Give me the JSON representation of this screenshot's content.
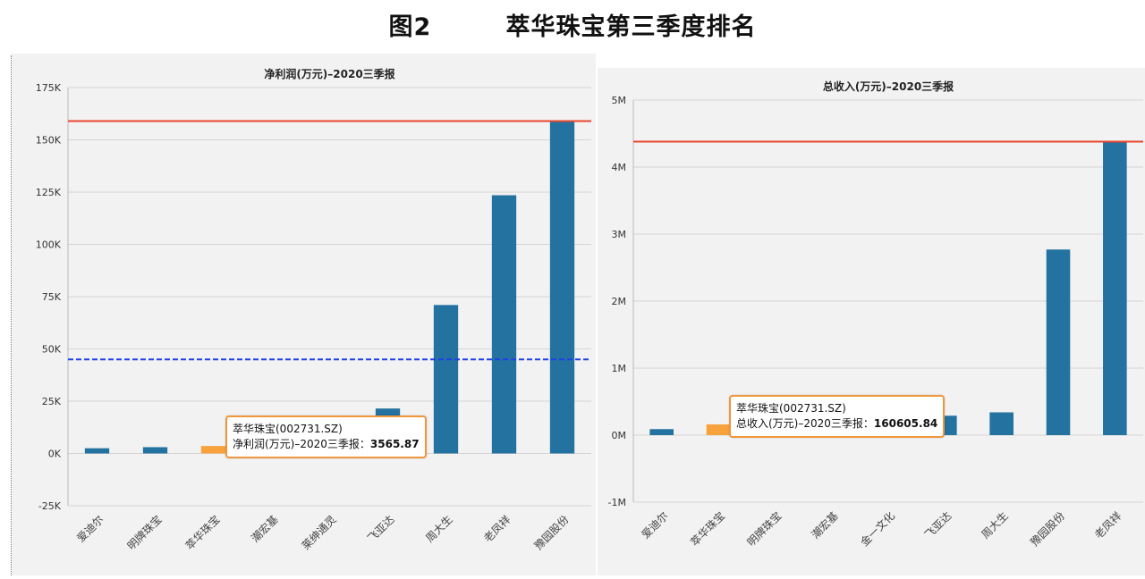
{
  "page": {
    "title": "图2        萃华珠宝第三季度排名"
  },
  "colors": {
    "bar": "#2372a0",
    "highlight": "#f7a23c",
    "max_line": "#e8462e",
    "avg_line": "#1f3fe6",
    "grid": "#d4d4d4",
    "tooltip_border": "#f0963c"
  },
  "chart_data": [
    {
      "type": "bar",
      "title": "净利润(万元)–2020三季报",
      "categories": [
        "爱迪尔",
        "明牌珠宝",
        "萃华珠宝",
        "潮宏基",
        "莱绅通灵",
        "飞亚达",
        "周大生",
        "老凤祥",
        "豫园股份"
      ],
      "values": [
        2500,
        3000,
        3565.87,
        0,
        0,
        21500,
        71000,
        123500,
        159000
      ],
      "highlight_index": 2,
      "ylim": [
        -25000,
        175000
      ],
      "yticks": [
        -25000,
        0,
        25000,
        50000,
        75000,
        100000,
        125000,
        150000,
        175000
      ],
      "ytick_labels": [
        "-25K",
        "0K",
        "25K",
        "50K",
        "75K",
        "100K",
        "125K",
        "150K",
        "175K"
      ],
      "max_line": 159000,
      "avg_line": 45000,
      "grid": true,
      "tooltip": {
        "line1": "萃华珠宝(002731.SZ)",
        "line2_label": "净利润(万元)–2020三季报：",
        "line2_value": "3565.87"
      }
    },
    {
      "type": "bar",
      "title": "总收入(万元)–2020三季报",
      "categories": [
        "爱迪尔",
        "萃华珠宝",
        "明牌珠宝",
        "潮宏基",
        "金一文化",
        "飞亚达",
        "周大生",
        "豫园股份",
        "老凤祥"
      ],
      "values": [
        90000,
        160605.84,
        0,
        0,
        0,
        290000,
        340000,
        2770000,
        4380000
      ],
      "highlight_index": 1,
      "ylim": [
        -1000000,
        5000000
      ],
      "yticks": [
        -1000000,
        0,
        1000000,
        2000000,
        3000000,
        4000000,
        5000000
      ],
      "ytick_labels": [
        "-1M",
        "0M",
        "1M",
        "2M",
        "3M",
        "4M",
        "5M"
      ],
      "max_line": 4380000,
      "grid": true,
      "tooltip": {
        "line1": "萃华珠宝(002731.SZ)",
        "line2_label": "总收入(万元)–2020三季报：",
        "line2_value": "160605.84"
      }
    }
  ]
}
